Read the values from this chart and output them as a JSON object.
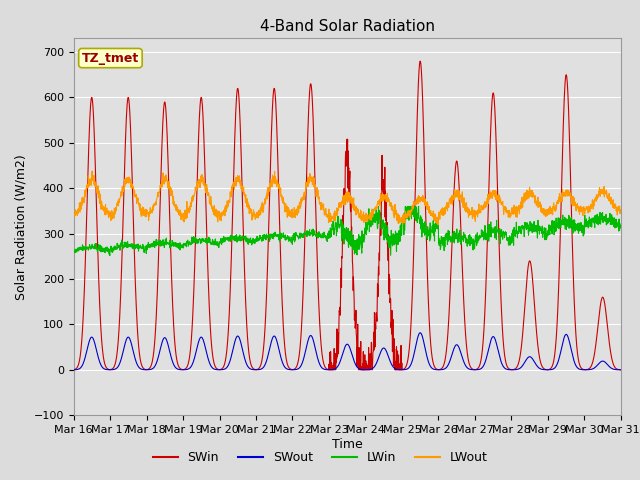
{
  "title": "4-Band Solar Radiation",
  "xlabel": "Time",
  "ylabel": "Solar Radiation (W/m2)",
  "annotation": "TZ_tmet",
  "ylim": [
    -100,
    730
  ],
  "yticks": [
    -100,
    0,
    100,
    200,
    300,
    400,
    500,
    600,
    700
  ],
  "x_tick_labels": [
    "Mar 16",
    "Mar 17",
    "Mar 18",
    "Mar 19",
    "Mar 20",
    "Mar 21",
    "Mar 22",
    "Mar 23",
    "Mar 24",
    "Mar 25",
    "Mar 26",
    "Mar 27",
    "Mar 28",
    "Mar 29",
    "Mar 30",
    "Mar 31"
  ],
  "background_color": "#dcdcdc",
  "plot_bg_color": "#e0e0e0",
  "grid_color": "#ffffff",
  "colors": {
    "SWin": "#cc0000",
    "SWout": "#0000cc",
    "LWin": "#00bb00",
    "LWout": "#ff9900"
  },
  "title_fontsize": 11,
  "axis_label_fontsize": 9,
  "tick_fontsize": 8,
  "legend_fontsize": 9,
  "annotation_fontsize": 9
}
